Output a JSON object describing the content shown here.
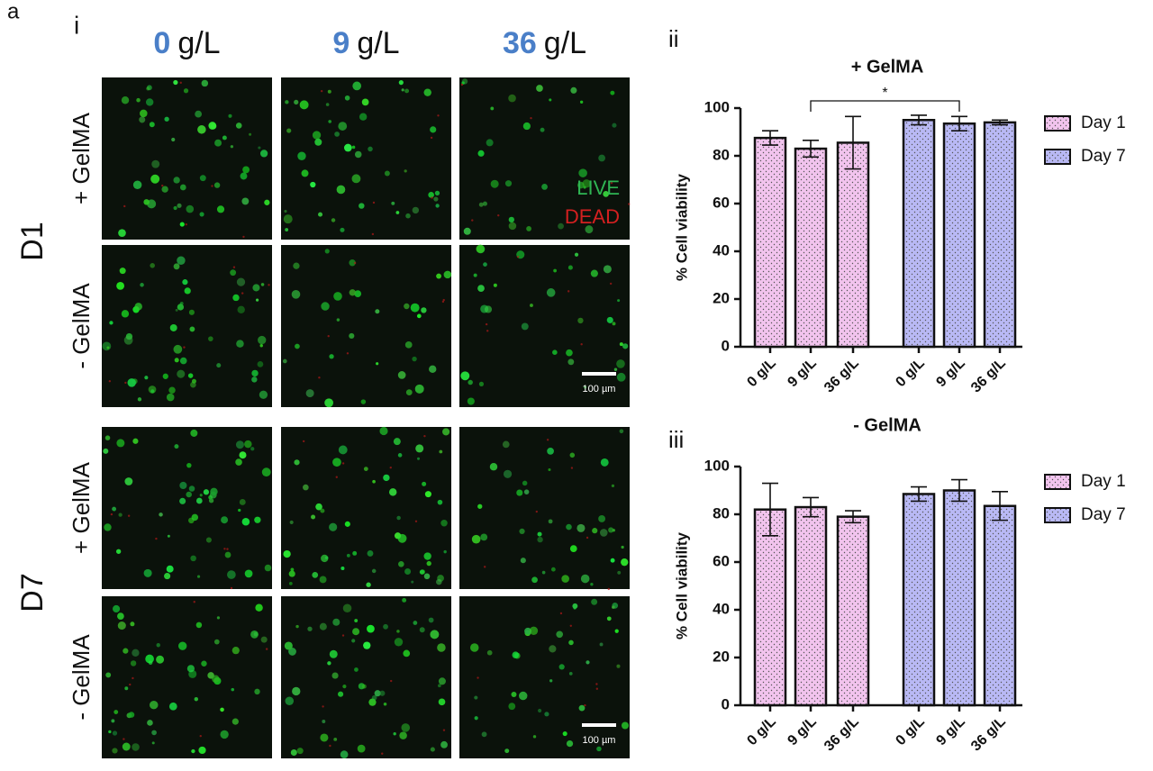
{
  "panel_label": "a",
  "images": {
    "label": "i",
    "columns": [
      {
        "value": "0",
        "unit": "g/L"
      },
      {
        "value": "9",
        "unit": "g/L"
      },
      {
        "value": "36",
        "unit": "g/L"
      }
    ],
    "rows": [
      "+ GelMA",
      "- GelMA",
      "+ GelMA",
      "- GelMA"
    ],
    "days": [
      "D1",
      "D7"
    ],
    "legend": {
      "live": "LIVE",
      "dead": "DEAD"
    },
    "scale_bars": [
      "100 µm",
      "100 µm"
    ]
  },
  "chart_data": [
    {
      "panel": "ii",
      "type": "bar",
      "title": "+ GelMA",
      "y_label": "% Cell viability",
      "categories": [
        "0 g/L",
        "9 g/L",
        "36 g/L"
      ],
      "series": [
        {
          "name": "Day 1",
          "color": "#f2c4ee",
          "values": [
            87.5,
            83,
            85.5
          ],
          "errors": [
            3,
            3.5,
            11
          ]
        },
        {
          "name": "Day 7",
          "color": "#b9b9f5",
          "values": [
            95,
            93.5,
            94
          ],
          "errors": [
            2,
            3,
            1
          ]
        }
      ],
      "ylim": [
        0,
        100
      ],
      "yticks": [
        0,
        20,
        40,
        60,
        80,
        100
      ],
      "annotation": "*"
    },
    {
      "panel": "iii",
      "type": "bar",
      "title": "- GelMA",
      "y_label": "% Cell viability",
      "categories": [
        "0 g/L",
        "9 g/L",
        "36 g/L"
      ],
      "series": [
        {
          "name": "Day 1",
          "color": "#f2c4ee",
          "values": [
            82,
            83,
            79
          ],
          "errors": [
            11,
            4,
            2.5
          ]
        },
        {
          "name": "Day 7",
          "color": "#b9b9f5",
          "values": [
            88.5,
            90,
            83.5
          ],
          "errors": [
            3,
            4.5,
            6
          ]
        }
      ],
      "ylim": [
        0,
        100
      ],
      "yticks": [
        0,
        20,
        40,
        60,
        80,
        100
      ]
    }
  ]
}
